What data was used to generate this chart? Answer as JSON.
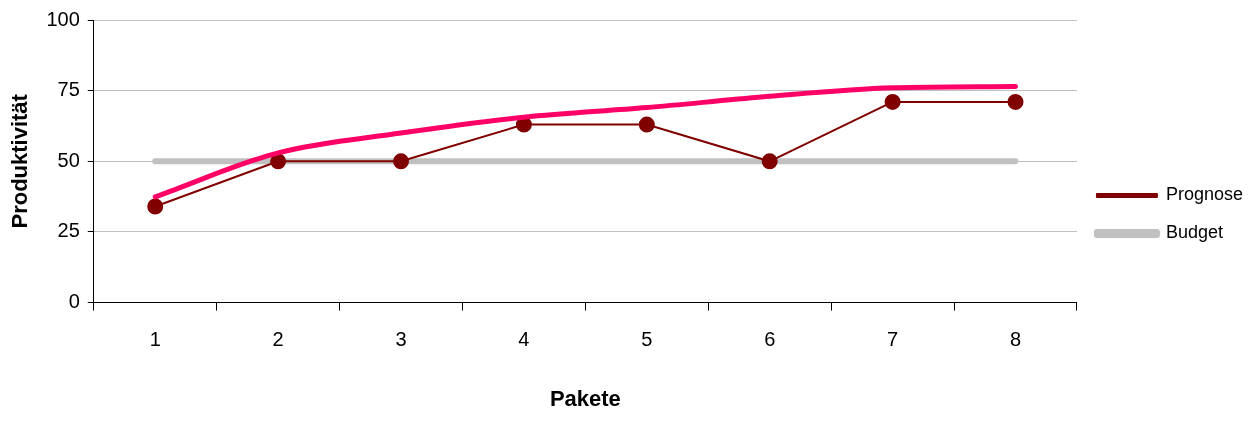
{
  "chart_data": {
    "type": "line",
    "xlabel": "Pakete",
    "ylabel": "Produktivität",
    "categories": [
      "1",
      "2",
      "3",
      "4",
      "5",
      "6",
      "7",
      "8"
    ],
    "ylim": [
      0,
      100
    ],
    "yticks": [
      0,
      25,
      50,
      75,
      100
    ],
    "grid": "y",
    "legend": "right",
    "marker": "none",
    "series": [
      {
        "name": "Budget",
        "color": "#c0c0c0",
        "values": [
          50,
          50,
          50,
          50,
          50,
          50,
          50,
          50
        ]
      },
      {
        "name": "Prognose",
        "color": "#800000",
        "marker": "circle",
        "values": [
          34,
          50,
          50,
          63,
          63,
          50,
          71,
          71
        ]
      },
      {
        "color": "#ff0066",
        "values": [
          37.4,
          53,
          60,
          65.6,
          69,
          73,
          76,
          76.5
        ]
      }
    ]
  }
}
